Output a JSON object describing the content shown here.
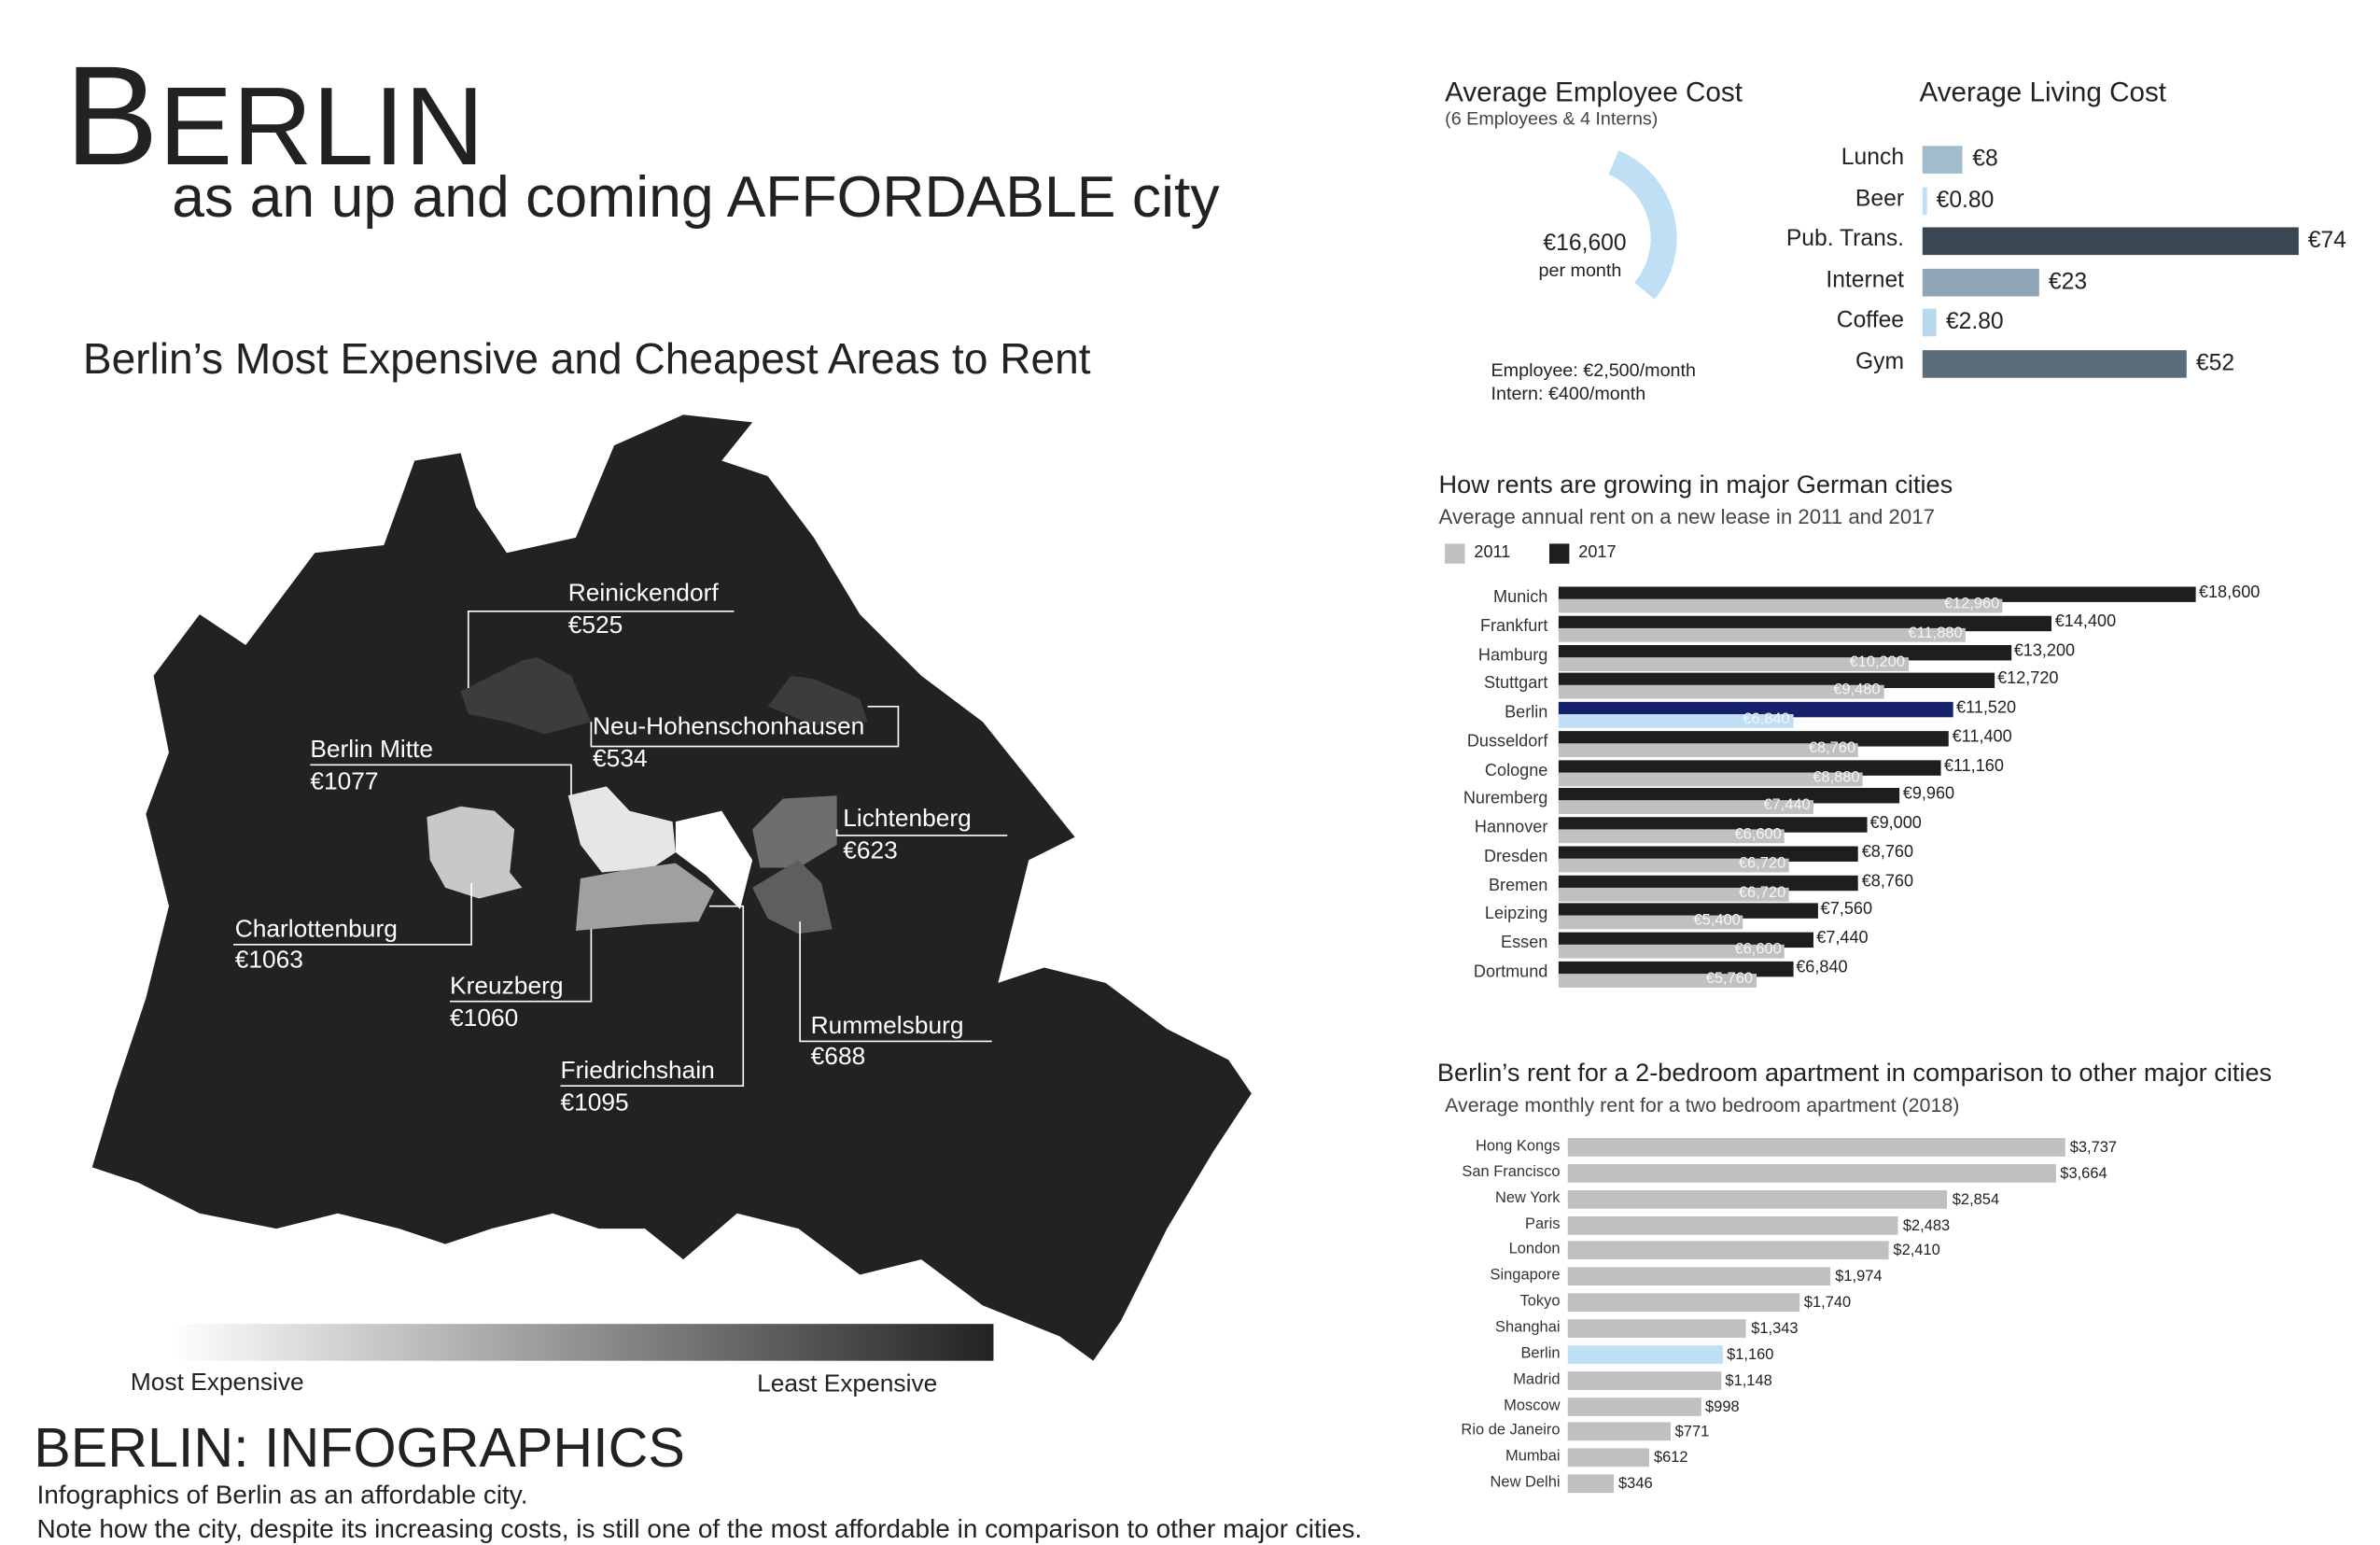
{
  "header": {
    "title_first": "B",
    "title_rest": "ERLIN",
    "subtitle": "as an up and coming AFFORDABLE city"
  },
  "map": {
    "title": "Berlin’s Most Expensive and Cheapest Areas to Rent",
    "districts": [
      {
        "name": "Reinickendorf",
        "rent": "€525"
      },
      {
        "name": "Neu-Hohenschonhausen",
        "rent": "€534"
      },
      {
        "name": "Berlin Mitte",
        "rent": "€1077"
      },
      {
        "name": "Lichtenberg",
        "rent": "€623"
      },
      {
        "name": "Charlottenburg",
        "rent": "€1063"
      },
      {
        "name": "Kreuzberg",
        "rent": "€1060"
      },
      {
        "name": "Rummelsburg",
        "rent": "€688"
      },
      {
        "name": "Friedrichshain",
        "rent": "€1095"
      }
    ],
    "legend": {
      "most": "Most Expensive",
      "least": "Least Expensive"
    }
  },
  "footer": {
    "title": "BERLIN: INFOGRAPHICS",
    "line1": "Infographics of Berlin as an affordable city.",
    "line2": "Note how the city, despite its increasing costs, is still one of the most affordable in comparison to other major cities."
  },
  "employee": {
    "title": "Average Employee Cost",
    "subtitle": "(6 Employees & 4 Interns)",
    "total": "€16,600",
    "per": "per month",
    "employee_line": "Employee: €2,500/month",
    "intern_line": "Intern: €400/month",
    "color": "#bfe0f4"
  },
  "chart_data": [
    {
      "type": "bar",
      "title": "Average Living Cost",
      "orientation": "horizontal",
      "categories": [
        "Lunch",
        "Beer",
        "Pub. Trans.",
        "Internet",
        "Coffee",
        "Gym"
      ],
      "values": [
        8,
        0.8,
        74,
        23,
        2.8,
        52
      ],
      "labels": [
        "€8",
        "€0.80",
        "€74",
        "€23",
        "€2.80",
        "€52"
      ],
      "colors": [
        "#a1bccd",
        "#bfe0f4",
        "#3a4753",
        "#8fa6b6",
        "#b8d8ec",
        "#5b6d7b"
      ]
    },
    {
      "type": "bar",
      "title": "How rents are growing in major German cities",
      "subtitle": "Average annual rent on a new  lease in 2011 and 2017",
      "orientation": "horizontal",
      "legend": [
        {
          "name": "2011",
          "color": "#c0c0c0"
        },
        {
          "name": "2017",
          "color": "#1e1e1e"
        }
      ],
      "categories": [
        "Munich",
        "Frankfurt",
        "Hamburg",
        "Stuttgart",
        "Berlin",
        "Dusseldorf",
        "Cologne",
        "Nuremberg",
        "Hannover",
        "Dresden",
        "Bremen",
        "Leipzing",
        "Essen",
        "Dortmund"
      ],
      "series": [
        {
          "name": "2017",
          "values": [
            18600,
            14400,
            13200,
            12720,
            11520,
            11400,
            11160,
            9960,
            9000,
            8760,
            8760,
            7560,
            7440,
            6840
          ],
          "labels": [
            "€18,600",
            "€14,400",
            "€13,200",
            "€12,720",
            "€11,520",
            "€11,400",
            "€11,160",
            "€9,960",
            "€9,000",
            "€8,760",
            "€8,760",
            "€7,560",
            "€7,440",
            "€6,840"
          ]
        },
        {
          "name": "2011",
          "values": [
            12960,
            11880,
            10200,
            9480,
            6840,
            8760,
            8880,
            7440,
            6600,
            6720,
            6720,
            5400,
            6600,
            5760
          ],
          "labels": [
            "€12,960",
            "€11,880",
            "€10,200",
            "€9,480",
            "€6,840",
            "€8,760",
            "€8,880",
            "€7,440",
            "€6,600",
            "€6,720",
            "€6,720",
            "€5,400",
            "€6,600",
            "€5,760"
          ]
        }
      ],
      "highlight": {
        "category": "Berlin",
        "color_2017": "#17216b",
        "color_2011": "#bfe0f4"
      }
    },
    {
      "type": "bar",
      "title": "Berlin’s rent for a 2-bedroom apartment in comparison to other major cities",
      "subtitle": "Average monthly rent for a two bedroom apartment (2018)",
      "orientation": "horizontal",
      "categories": [
        "Hong Kongs",
        "San Francisco",
        "New York",
        "Paris",
        "London",
        "Singapore",
        "Tokyo",
        "Shanghai",
        "Berlin",
        "Madrid",
        "Moscow",
        "Rio de Janeiro",
        "Mumbai",
        "New Delhi"
      ],
      "values": [
        3737,
        3664,
        2854,
        2483,
        2410,
        1974,
        1740,
        1343,
        1160,
        1148,
        998,
        771,
        612,
        346
      ],
      "labels": [
        "$3,737",
        "$3,664",
        "$2,854",
        "$2,483",
        "$2,410",
        "$1,974",
        "$1,740",
        "$1,343",
        "$1,160",
        "$1,148",
        "$998",
        "$771",
        "$612",
        "$346"
      ],
      "color": "#c0c0c0",
      "highlight": {
        "category": "Berlin",
        "color": "#bfe0f4"
      }
    }
  ]
}
